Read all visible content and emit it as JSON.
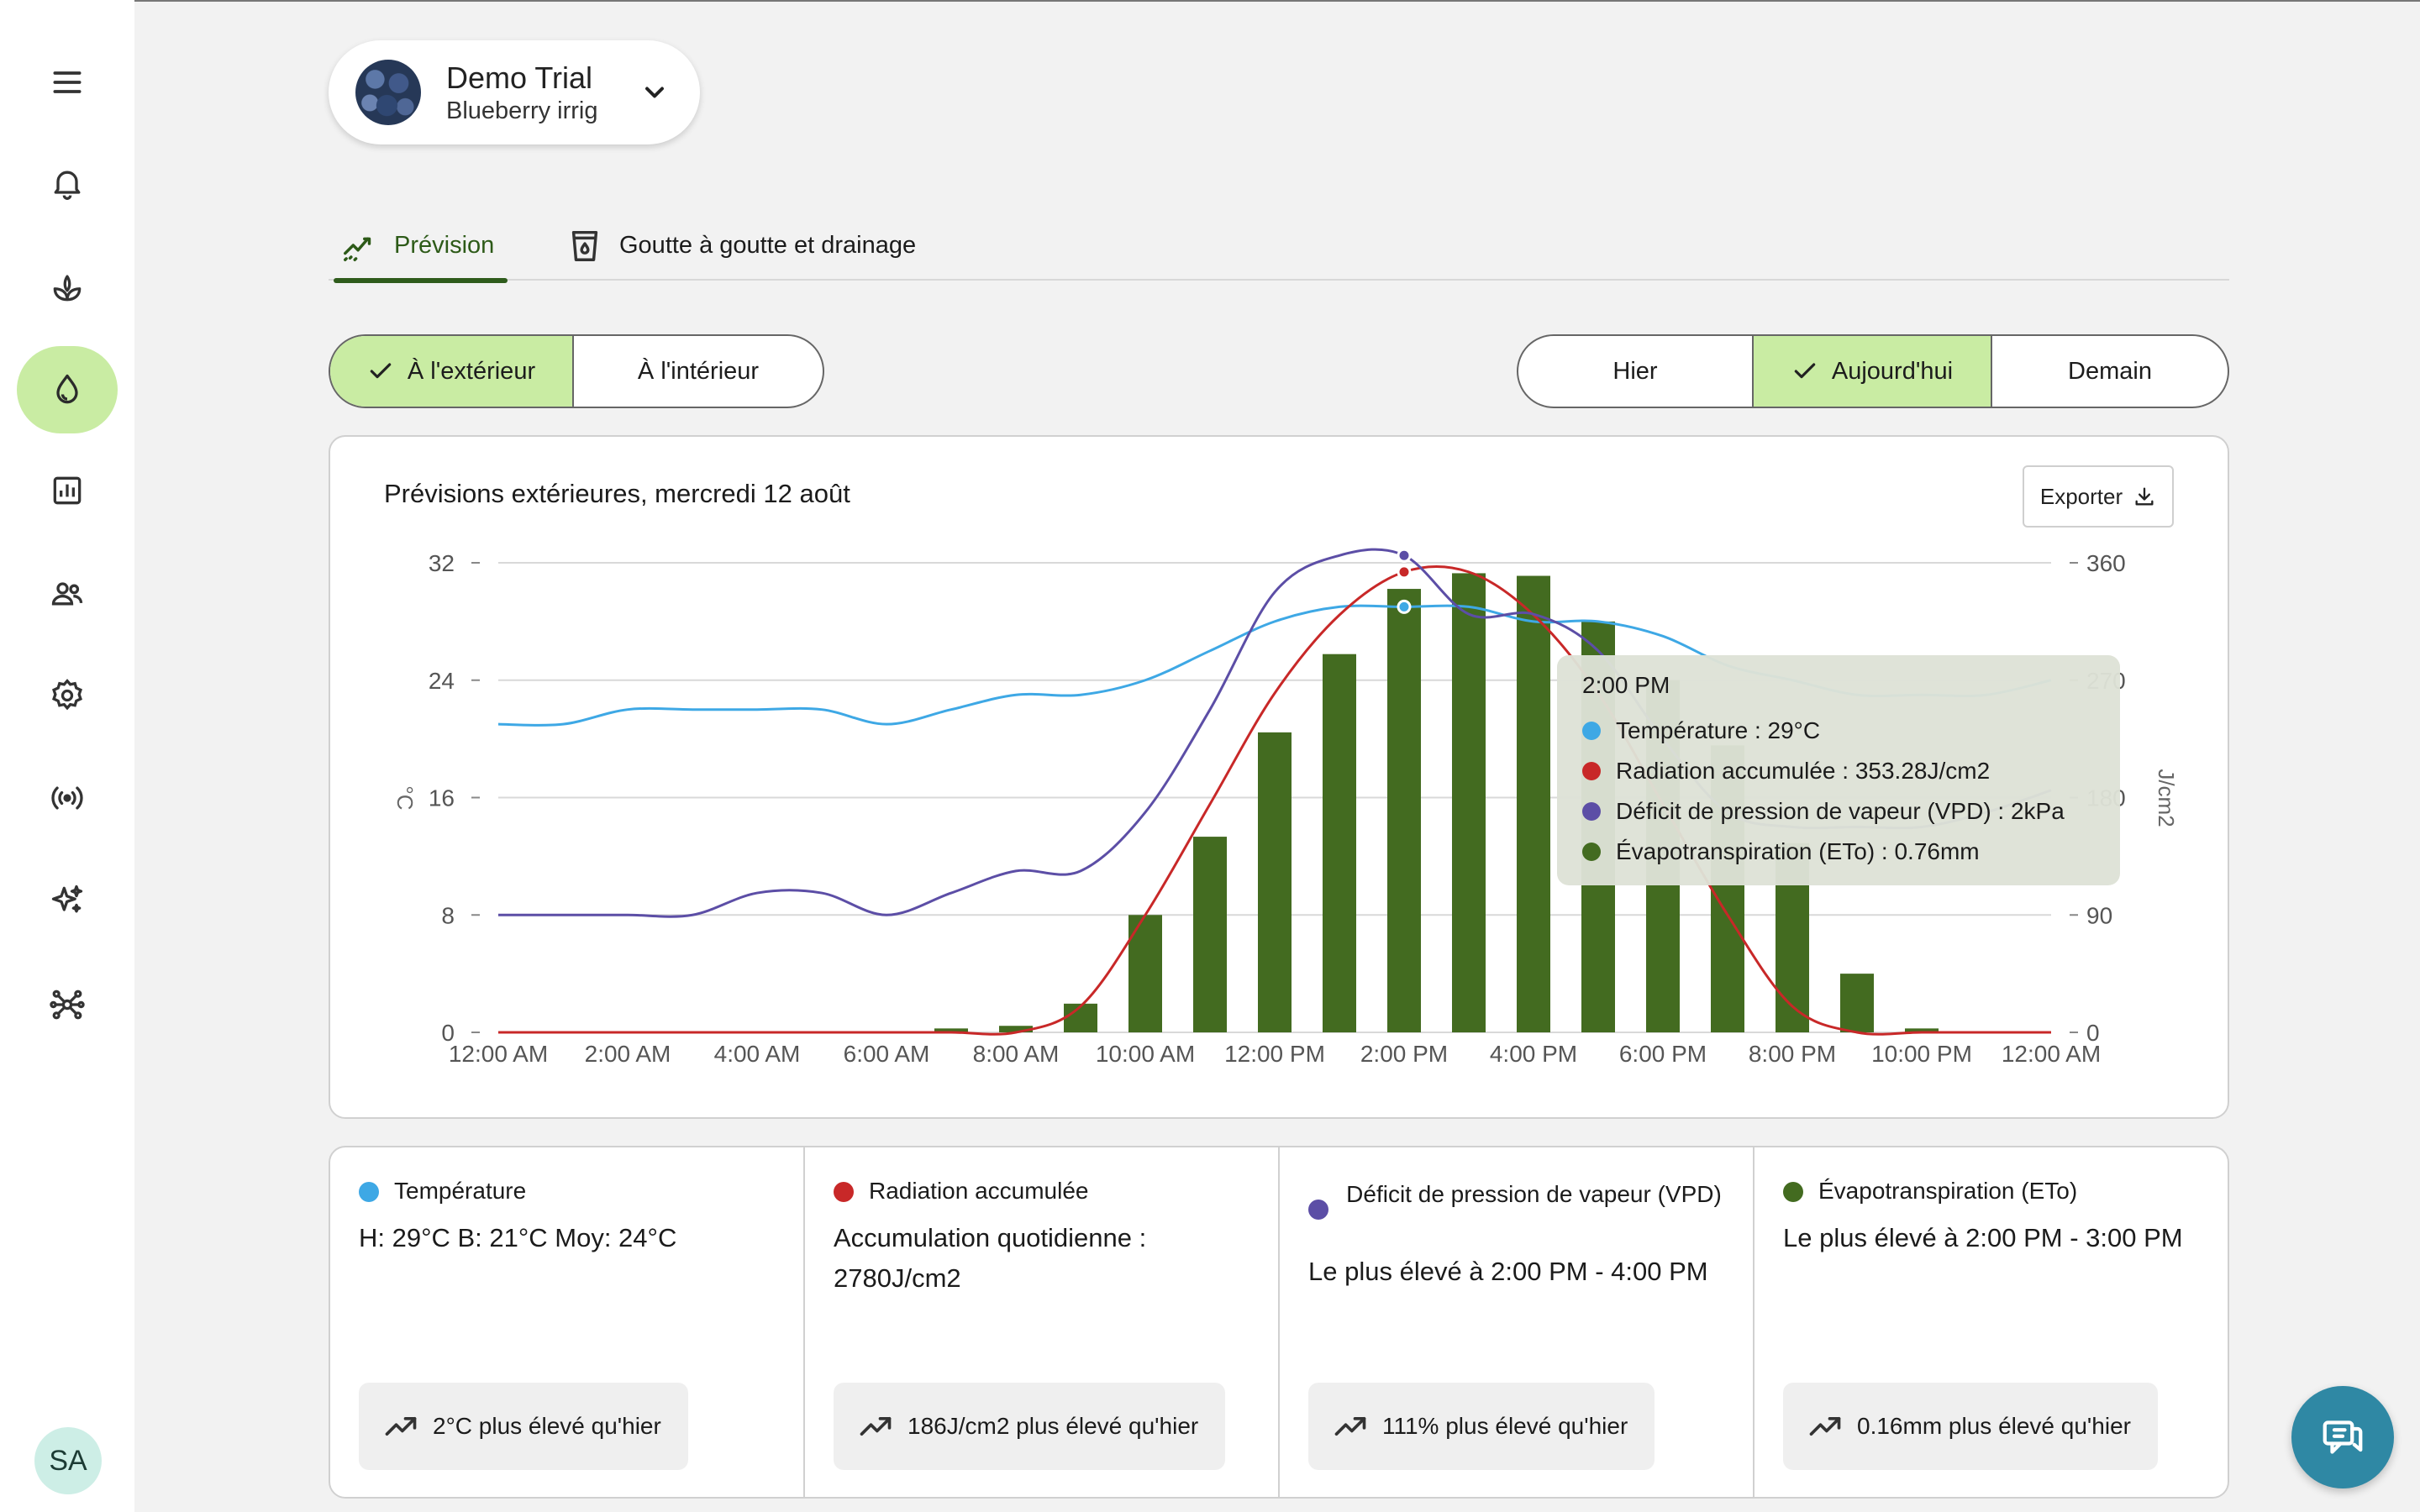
{
  "sidebar": {
    "items": [
      {
        "icon": "menu-icon"
      },
      {
        "icon": "bell-icon"
      },
      {
        "icon": "plant-icon"
      },
      {
        "icon": "water-drop-icon",
        "active": true
      },
      {
        "icon": "bar-chart-icon"
      },
      {
        "icon": "users-icon"
      },
      {
        "icon": "gear-icon"
      },
      {
        "icon": "broadcast-icon"
      },
      {
        "icon": "sparkles-icon"
      },
      {
        "icon": "network-icon"
      }
    ],
    "avatar_initials": "SA"
  },
  "trial": {
    "title": "Demo Trial",
    "subtitle": "Blueberry irrig"
  },
  "tabs": [
    {
      "label": "Prévision",
      "icon": "trend-chart-icon",
      "active": true
    },
    {
      "label": "Goutte à goutte et drainage",
      "icon": "cup-drop-icon",
      "active": false
    }
  ],
  "location_toggle": {
    "options": [
      "À l'extérieur",
      "À l'intérieur"
    ],
    "selected": "À l'extérieur"
  },
  "day_toggle": {
    "options": [
      "Hier",
      "Aujourd'hui",
      "Demain"
    ],
    "selected": "Aujourd'hui"
  },
  "chart_card": {
    "title": "Prévisions extérieures, mercredi 12 août",
    "export_label": "Exporter"
  },
  "chart_data": {
    "type": "bar",
    "x_labels": [
      "12:00 AM",
      "2:00 AM",
      "4:00 AM",
      "6:00 AM",
      "8:00 AM",
      "10:00 AM",
      "12:00 PM",
      "2:00 PM",
      "4:00 PM",
      "6:00 PM",
      "8:00 PM",
      "10:00 PM",
      "12:00 AM"
    ],
    "hours": [
      0,
      1,
      2,
      3,
      4,
      5,
      6,
      7,
      8,
      9,
      10,
      11,
      12,
      13,
      14,
      15,
      16,
      17,
      18,
      19,
      20,
      21,
      22,
      23,
      24
    ],
    "y_left": {
      "label": "°C",
      "ticks": [
        0,
        8,
        16,
        24,
        32
      ],
      "range": [
        0,
        32
      ]
    },
    "y_right": {
      "label": "J/cm2",
      "ticks": [
        0,
        90,
        180,
        270,
        360
      ],
      "range": [
        0,
        360
      ]
    },
    "series": [
      {
        "name": "Température",
        "kind": "line",
        "axis": "left",
        "color": "#3ea8e5",
        "values": [
          21,
          21,
          22,
          22,
          22,
          22,
          21,
          22,
          23,
          23,
          24,
          26,
          28,
          29,
          29,
          29,
          28,
          28,
          27,
          25,
          24,
          23,
          23,
          23,
          24
        ]
      },
      {
        "name": "Radiation accumulée",
        "kind": "line",
        "axis": "right",
        "color": "#c82828",
        "values": [
          0,
          0,
          0,
          0,
          0,
          0,
          0,
          0,
          0,
          20,
          90,
          175,
          260,
          320,
          353,
          353,
          320,
          260,
          175,
          90,
          20,
          0,
          0,
          0,
          0
        ]
      },
      {
        "name": "Déficit de pression de vapeur (VPD)",
        "kind": "line",
        "axis": "left",
        "color": "#5c4ea6",
        "values": [
          8,
          8,
          8,
          8,
          9.5,
          9.5,
          8,
          9.5,
          11,
          11,
          15,
          22,
          30,
          32.5,
          32.5,
          28.5,
          28.5,
          26,
          20,
          15,
          14,
          14,
          14,
          15,
          16.5
        ]
      },
      {
        "name": "Évapotranspiration (ETo)",
        "kind": "bar",
        "axis": "right",
        "color": "#436b20",
        "values": [
          0,
          0,
          0,
          0,
          0,
          0,
          0,
          3,
          5,
          22,
          90,
          150,
          230,
          290,
          340,
          352,
          350,
          315,
          270,
          220,
          145,
          45,
          3,
          0,
          0
        ]
      }
    ],
    "tooltip": {
      "time": "2:00 PM",
      "rows": [
        {
          "text": "Température : 29°C",
          "color": "#3ea8e5"
        },
        {
          "text": "Radiation accumulée : 353.28J/cm2",
          "color": "#c82828"
        },
        {
          "text": "Déficit de pression de vapeur (VPD) : 2kPa",
          "color": "#5c4ea6"
        },
        {
          "text": "Évapotranspiration (ETo) : 0.76mm",
          "color": "#436b20"
        }
      ]
    }
  },
  "stats": [
    {
      "label": "Température",
      "color": "#3ea8e5",
      "body": "H: 29°C B: 21°C Moy: 24°C",
      "trend": "2°C plus élevé qu'hier"
    },
    {
      "label": "Radiation accumulée",
      "color": "#c82828",
      "body": "Accumulation quotidienne : 2780J/cm2",
      "trend": "186J/cm2 plus élevé qu'hier"
    },
    {
      "label": "Déficit de pression de vapeur (VPD)",
      "color": "#5c4ea6",
      "body": "Le plus élevé à 2:00 PM - 4:00 PM",
      "trend": "111% plus élevé qu'hier"
    },
    {
      "label": "Évapotranspiration (ETo)",
      "color": "#436b20",
      "body": "Le plus élevé à 2:00 PM - 3:00 PM",
      "trend": "0.16mm plus élevé qu'hier"
    }
  ]
}
